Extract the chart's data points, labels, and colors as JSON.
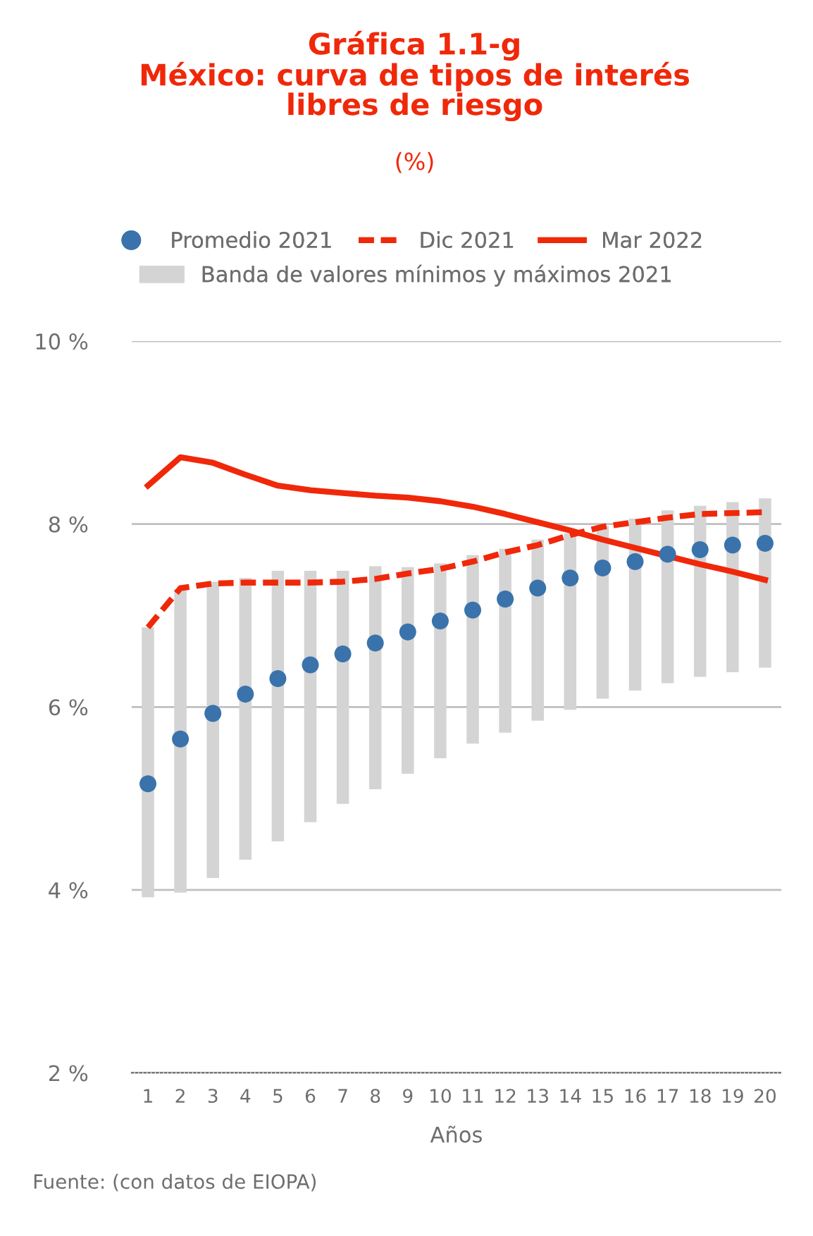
{
  "chart_data": {
    "type": "line",
    "title": "Gráfica 1.1-g\nMéxico: curva de tipos de interés\nlibres de riesgo",
    "subtitle": "(%)",
    "xlabel": "Años",
    "categories": [
      "1",
      "2",
      "3",
      "4",
      "5",
      "6",
      "7",
      "8",
      "9",
      "10",
      "11",
      "12",
      "13",
      "14",
      "15",
      "16",
      "17",
      "18",
      "19",
      "20"
    ],
    "series": [
      {
        "name": "Promedio 2021",
        "type": "scatter",
        "marker": "circle",
        "color": "#3a73ab",
        "values": [
          5.16,
          5.65,
          5.93,
          6.14,
          6.31,
          6.46,
          6.58,
          6.7,
          6.82,
          6.94,
          7.06,
          7.18,
          7.3,
          7.41,
          7.52,
          7.59,
          7.67,
          7.72,
          7.77,
          7.79
        ]
      },
      {
        "name": "Banda de valores mínimos y máximos 2021",
        "type": "bar",
        "color": "#d4d4d4",
        "base": [
          3.92,
          3.97,
          4.13,
          4.33,
          4.53,
          4.74,
          4.94,
          5.1,
          5.27,
          5.44,
          5.6,
          5.72,
          5.85,
          5.97,
          6.09,
          6.18,
          6.26,
          6.33,
          6.38,
          6.43
        ],
        "values": [
          2.95,
          3.32,
          3.24,
          3.08,
          2.96,
          2.75,
          2.55,
          2.44,
          2.26,
          2.13,
          2.06,
          2.01,
          1.98,
          1.93,
          1.89,
          1.88,
          1.89,
          1.87,
          1.86,
          1.85
        ]
      },
      {
        "name": "Dic 2021",
        "line_style": "dashed",
        "color": "#f0280a",
        "values": [
          6.87,
          7.3,
          7.35,
          7.36,
          7.36,
          7.36,
          7.37,
          7.4,
          7.46,
          7.51,
          7.59,
          7.69,
          7.77,
          7.88,
          7.97,
          8.02,
          8.07,
          8.11,
          8.12,
          8.13
        ]
      },
      {
        "name": "Mar 2022",
        "line_style": "solid",
        "color": "#f0280a",
        "values": [
          8.42,
          8.73,
          8.67,
          8.54,
          8.42,
          8.37,
          8.34,
          8.31,
          8.29,
          8.25,
          8.19,
          8.11,
          8.02,
          7.93,
          7.83,
          7.74,
          7.65,
          7.56,
          7.48,
          7.39
        ]
      }
    ],
    "ylim": [
      2,
      10
    ],
    "yticks": [
      {
        "value": 2,
        "label": "2 %"
      },
      {
        "value": 4,
        "label": "4 %"
      },
      {
        "value": 6,
        "label": "6 %"
      },
      {
        "value": 8,
        "label": "8 %"
      },
      {
        "value": 10,
        "label": "10 %"
      }
    ],
    "grid": "y",
    "legend": "top",
    "annotations": [
      "Fuente: (con datos de EIOPA)"
    ]
  }
}
